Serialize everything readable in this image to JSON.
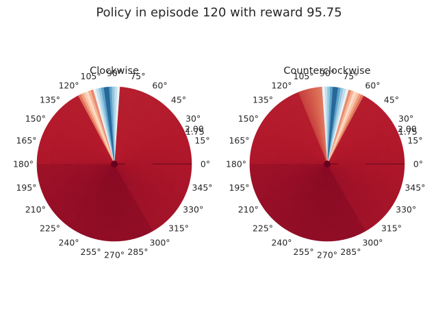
{
  "figure": {
    "title": "Policy in episode 120 with reward 95.75"
  },
  "chart_data": [
    {
      "type": "heatmap",
      "projection": "polar",
      "title": "Clockwise",
      "theta_tick_labels": [
        "0°",
        "15°",
        "30°",
        "45°",
        "60°",
        "75°",
        "90°",
        "105°",
        "120°",
        "135°",
        "150°",
        "165°",
        "180°",
        "195°",
        "210°",
        "225°",
        "240°",
        "255°",
        "270°",
        "285°",
        "300°",
        "315°",
        "330°",
        "345°"
      ],
      "radial_tick_labels": [
        "1.75",
        "2.00"
      ],
      "colormap": "RdBu",
      "low_color": "#67001f",
      "high_color": "#053061",
      "mid_color": "#f7f7f7",
      "dominant_color": "#b2182b",
      "features": {
        "blue_wedge_theta_deg": [
          86,
          105
        ],
        "blue_peak_theta_deg": 96,
        "white_band_theta_deg": [
          105,
          118
        ]
      }
    },
    {
      "type": "heatmap",
      "projection": "polar",
      "title": "Counterclockwise",
      "theta_tick_labels": [
        "0°",
        "15°",
        "30°",
        "45°",
        "60°",
        "75°",
        "90°",
        "105°",
        "120°",
        "135°",
        "150°",
        "165°",
        "180°",
        "195°",
        "210°",
        "225°",
        "240°",
        "255°",
        "270°",
        "285°",
        "300°",
        "315°",
        "330°",
        "345°"
      ],
      "radial_tick_labels": [
        "1.75",
        "2.00"
      ],
      "colormap": "RdBu",
      "low_color": "#67001f",
      "high_color": "#053061",
      "mid_color": "#f7f7f7",
      "dominant_color": "#b2182b",
      "features": {
        "blue_wedge_theta_deg": [
          75,
          94
        ],
        "blue_peak_theta_deg": 84,
        "white_band_theta_deg": [
          62,
          75
        ]
      }
    }
  ]
}
